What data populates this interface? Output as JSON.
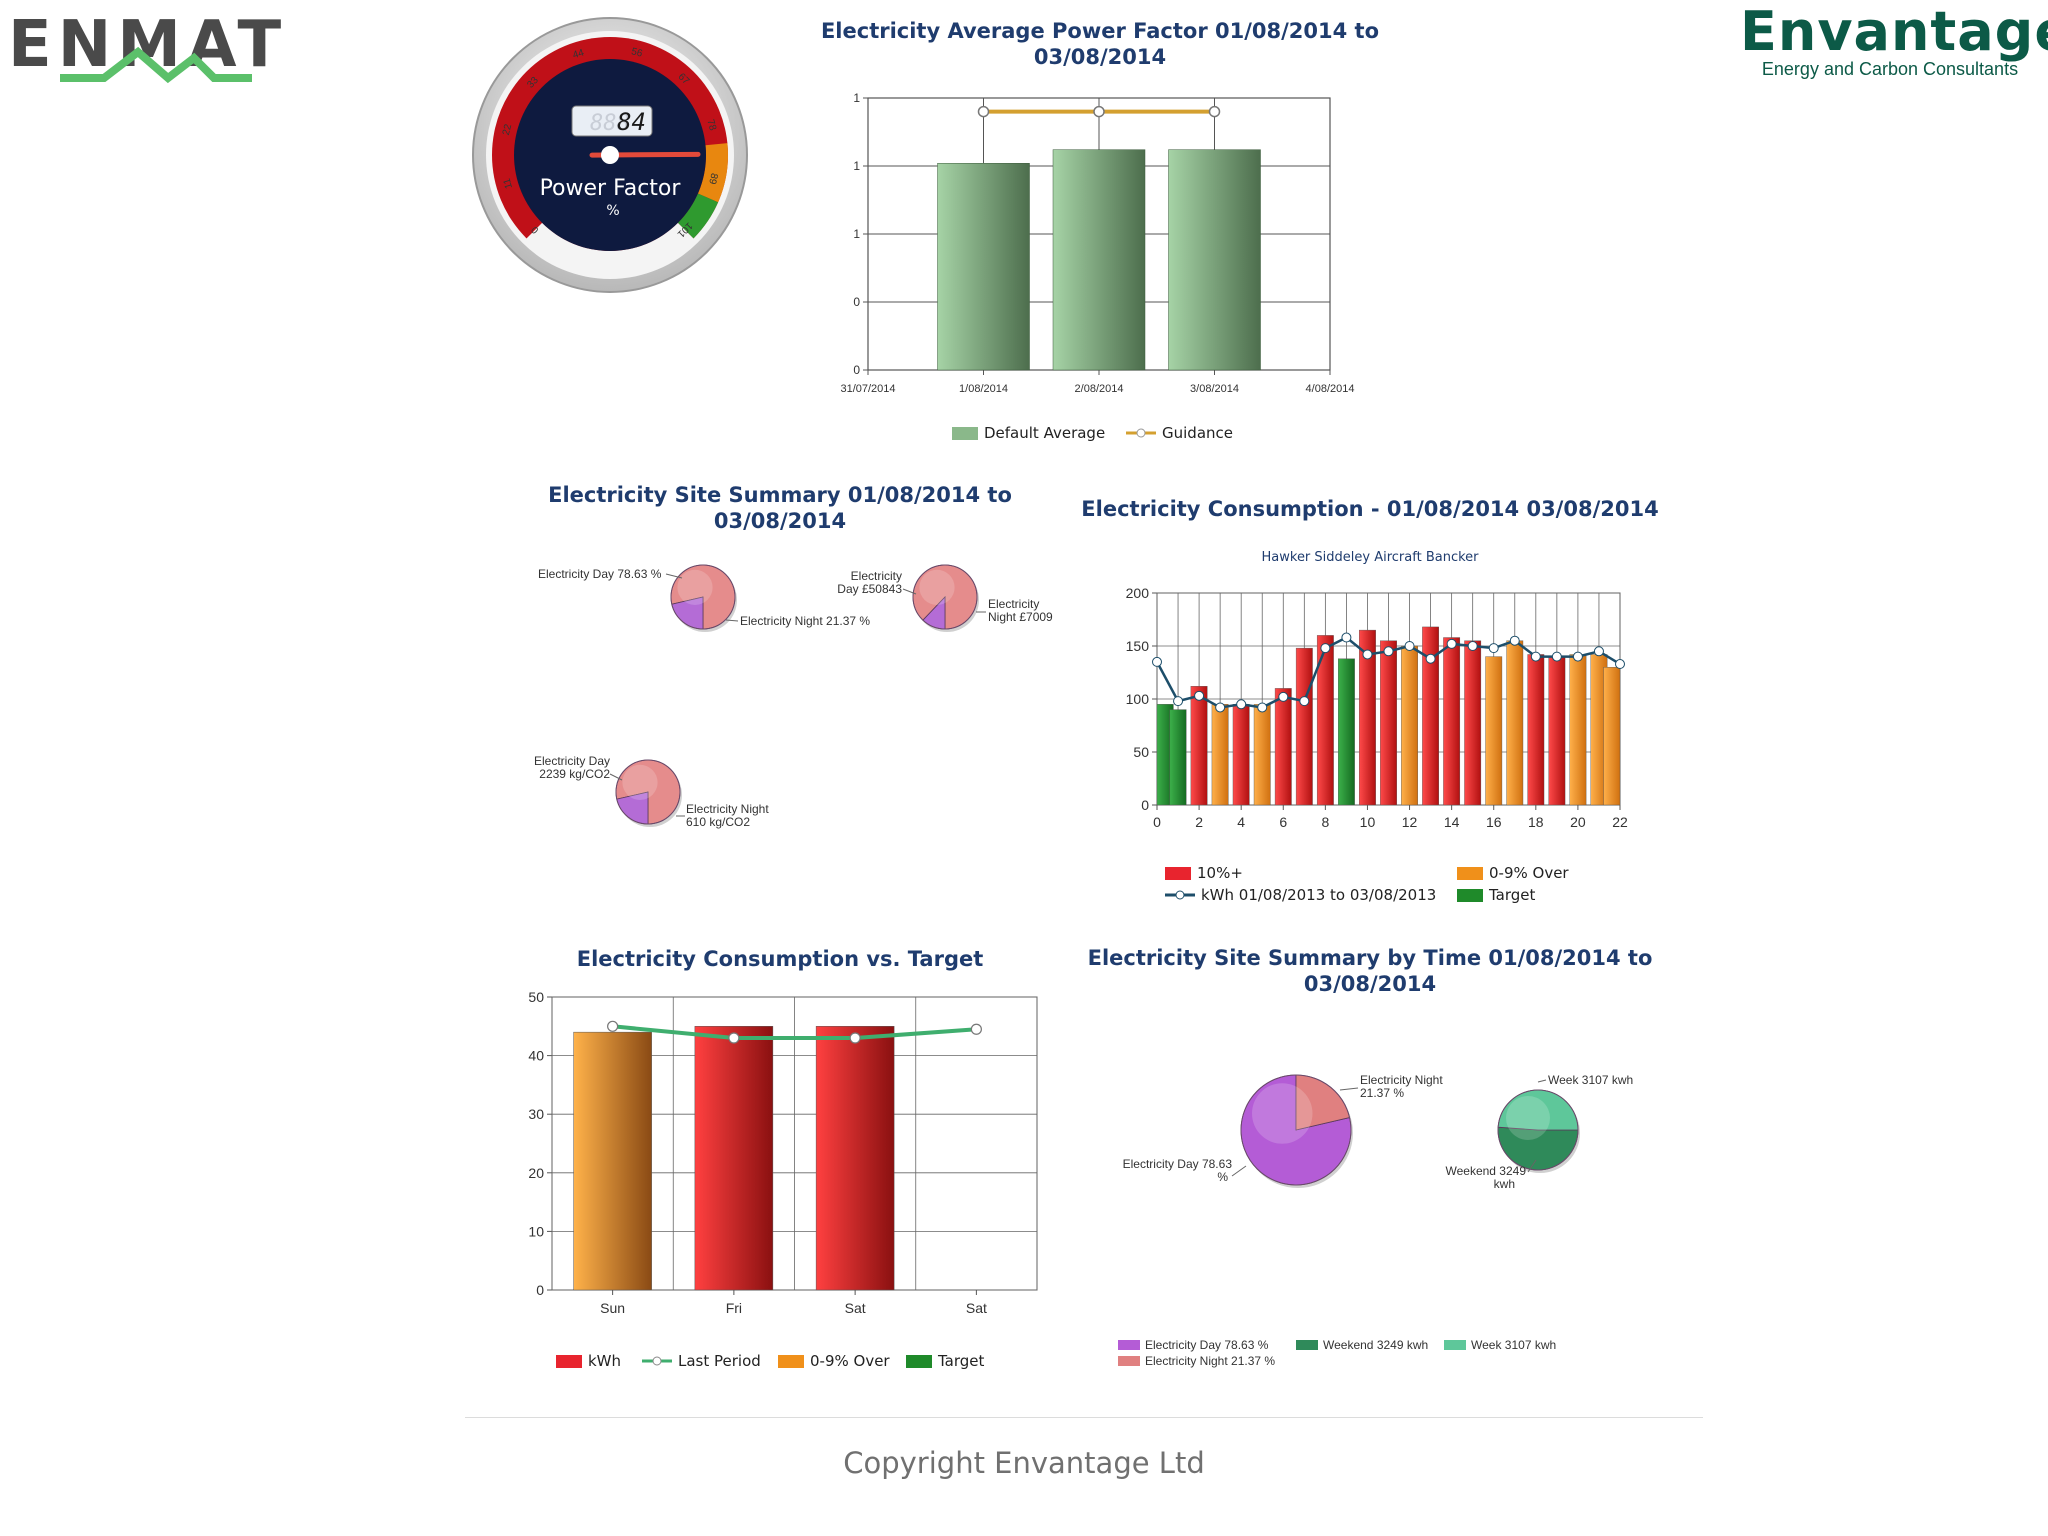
{
  "brand": {
    "logo_left": "ENMAT",
    "title": "Envantage",
    "subtitle": "Energy and Carbon Consultants"
  },
  "gauge": {
    "display_value": "84",
    "display_ghost": "888",
    "label": "Power Factor",
    "unit": "%",
    "scale_labels": [
      "0",
      "11",
      "22",
      "33",
      "44",
      "56",
      "67",
      "78",
      "89",
      "101"
    ],
    "value": 84,
    "colors": {
      "red": "#d0141e",
      "orange": "#e8870f",
      "green": "#2f9a2f",
      "face": "#0e1a3f"
    }
  },
  "power_factor_chart": {
    "title_line1": "Electricity Average Power Factor 01/08/2014 to",
    "title_line2": "03/08/2014",
    "legend": {
      "bar": "Default Average",
      "line": "Guidance"
    }
  },
  "site_summary": {
    "title_line1": "Electricity Site Summary 01/08/2014 to",
    "title_line2": "03/08/2014",
    "pie1": {
      "label_a": "Electricity Day 78.63 %",
      "label_b": "Electricity Night 21.37 %"
    },
    "pie2": {
      "label_a1": "Electricity",
      "label_a2": "Day £50843",
      "label_b1": "Electricity",
      "label_b2": "Night £7009"
    },
    "pie3": {
      "label_a1": "Electricity Day",
      "label_a2": "2239 kg/CO2",
      "label_b1": "Electricity Night",
      "label_b2": "610 kg/CO2"
    }
  },
  "consumption_chart": {
    "title": "Electricity Consumption - 01/08/2014 03/08/2014",
    "subtitle": "Hawker Siddeley Aircraft Bancker",
    "legend": {
      "red": "10%+",
      "orange": "0-9% Over",
      "line": "kWh 01/08/2013 to 03/08/2013",
      "green": "Target"
    }
  },
  "vs_target_chart": {
    "title": "Electricity Consumption vs. Target",
    "legend": {
      "kwh": "kWh",
      "last": "Last Period",
      "orange": "0-9% Over",
      "green": "Target"
    }
  },
  "by_time": {
    "title_line1": "Electricity Site Summary by Time 01/08/2014 to",
    "title_line2": "03/08/2014",
    "pie1": {
      "label_night1": "Electricity Night",
      "label_night2": "21.37 %",
      "label_day1": "Electricity Day 78.63",
      "label_day2": "%"
    },
    "pie2": {
      "label_week": "Week 3107 kwh",
      "label_weekend1": "Weekend 3249",
      "label_weekend2": "kwh"
    },
    "legend": {
      "day": "Electricity Day 78.63 %",
      "night": "Electricity Night 21.37 %",
      "weekend": "Weekend 3249 kwh",
      "week": "Week 3107 kwh"
    }
  },
  "footer": {
    "copyright": "Copyright Envantage Ltd"
  },
  "chart_data": [
    {
      "type": "bar",
      "title": "Electricity Average Power Factor 01/08/2014 to 03/08/2014",
      "x_tick_labels": [
        "31/07/2014",
        "1/08/2014",
        "2/08/2014",
        "3/08/2014",
        "4/08/2014"
      ],
      "y_tick_labels": [
        "0",
        "0",
        "1",
        "1",
        "1"
      ],
      "categories": [
        "1/08/2014",
        "2/08/2014",
        "3/08/2014"
      ],
      "series": [
        {
          "name": "Default Average",
          "kind": "bar",
          "values": [
            0.76,
            0.81,
            0.81
          ],
          "color": "#7faa7f"
        },
        {
          "name": "Guidance",
          "kind": "line",
          "values": [
            0.95,
            0.95,
            0.95
          ],
          "color": "#d4a030"
        }
      ],
      "ylim": [
        0,
        1
      ],
      "grid": true,
      "legend": "bottom"
    },
    {
      "type": "pie",
      "slices": [
        {
          "label": "Electricity Day",
          "value": 78.63,
          "color": "#e58c8c"
        },
        {
          "label": "Electricity Night",
          "value": 21.37,
          "color": "#b46cd6"
        }
      ]
    },
    {
      "type": "pie",
      "slices": [
        {
          "label": "Electricity Day",
          "value": 50843,
          "color": "#e58c8c"
        },
        {
          "label": "Electricity Night",
          "value": 7009,
          "color": "#b46cd6"
        }
      ]
    },
    {
      "type": "pie",
      "slices": [
        {
          "label": "Electricity Day",
          "value": 2239,
          "color": "#e58c8c"
        },
        {
          "label": "Electricity Night",
          "value": 610,
          "color": "#b46cd6"
        }
      ]
    },
    {
      "type": "bar",
      "title": "Electricity Consumption - 01/08/2014 03/08/2014",
      "subtitle": "Hawker Siddeley Aircraft Bancker",
      "x": [
        0,
        1,
        2,
        3,
        4,
        5,
        6,
        7,
        8,
        9,
        10,
        11,
        12,
        13,
        14,
        15,
        16,
        17,
        18,
        19,
        20,
        21,
        22
      ],
      "x_tick_labels": [
        "0",
        "2",
        "4",
        "6",
        "8",
        "10",
        "12",
        "14",
        "16",
        "18",
        "20",
        "22"
      ],
      "y_tick_labels": [
        "0",
        "50",
        "100",
        "150",
        "200"
      ],
      "series": [
        {
          "name": "consumption",
          "kind": "bar",
          "values": [
            95,
            90,
            112,
            95,
            95,
            95,
            110,
            148,
            160,
            138,
            165,
            155,
            150,
            168,
            158,
            155,
            140,
            155,
            142,
            140,
            142,
            142,
            130
          ],
          "colors": [
            "green",
            "green",
            "red",
            "orange",
            "red",
            "orange",
            "red",
            "red",
            "red",
            "green",
            "red",
            "red",
            "orange",
            "red",
            "red",
            "red",
            "orange",
            "orange",
            "red",
            "red",
            "orange",
            "orange",
            "orange"
          ]
        },
        {
          "name": "kWh 01/08/2013 to 03/08/2013",
          "kind": "line",
          "values": [
            135,
            98,
            103,
            92,
            95,
            92,
            102,
            98,
            148,
            158,
            142,
            145,
            150,
            138,
            152,
            150,
            148,
            155,
            140,
            140,
            140,
            145,
            133
          ]
        }
      ],
      "ylim": [
        0,
        200
      ],
      "grid": true,
      "legend": "bottom"
    },
    {
      "type": "bar",
      "title": "Electricity Consumption vs. Target",
      "categories": [
        "Sun",
        "Fri",
        "Sat",
        "Sat"
      ],
      "y_tick_labels": [
        "0",
        "10",
        "20",
        "30",
        "40",
        "50"
      ],
      "series": [
        {
          "name": "kWh",
          "kind": "bar",
          "values": [
            44,
            45,
            45,
            null
          ],
          "colors": [
            "orange",
            "red",
            "red",
            null
          ]
        },
        {
          "name": "Last Period",
          "kind": "line",
          "values": [
            45,
            43,
            43,
            44.5
          ]
        }
      ],
      "ylim": [
        0,
        50
      ],
      "grid": true,
      "legend": "bottom"
    },
    {
      "type": "pie",
      "title": "Electricity Site Summary by Time 01/08/2014 to 03/08/2014",
      "slices": [
        {
          "label": "Electricity Day",
          "value": 78.63,
          "color": "#b45cd6"
        },
        {
          "label": "Electricity Night",
          "value": 21.37,
          "color": "#e08080"
        }
      ]
    },
    {
      "type": "pie",
      "slices": [
        {
          "label": "Weekend",
          "value": 3249,
          "color": "#2f8a5a"
        },
        {
          "label": "Week",
          "value": 3107,
          "color": "#5ec79a"
        }
      ]
    }
  ]
}
